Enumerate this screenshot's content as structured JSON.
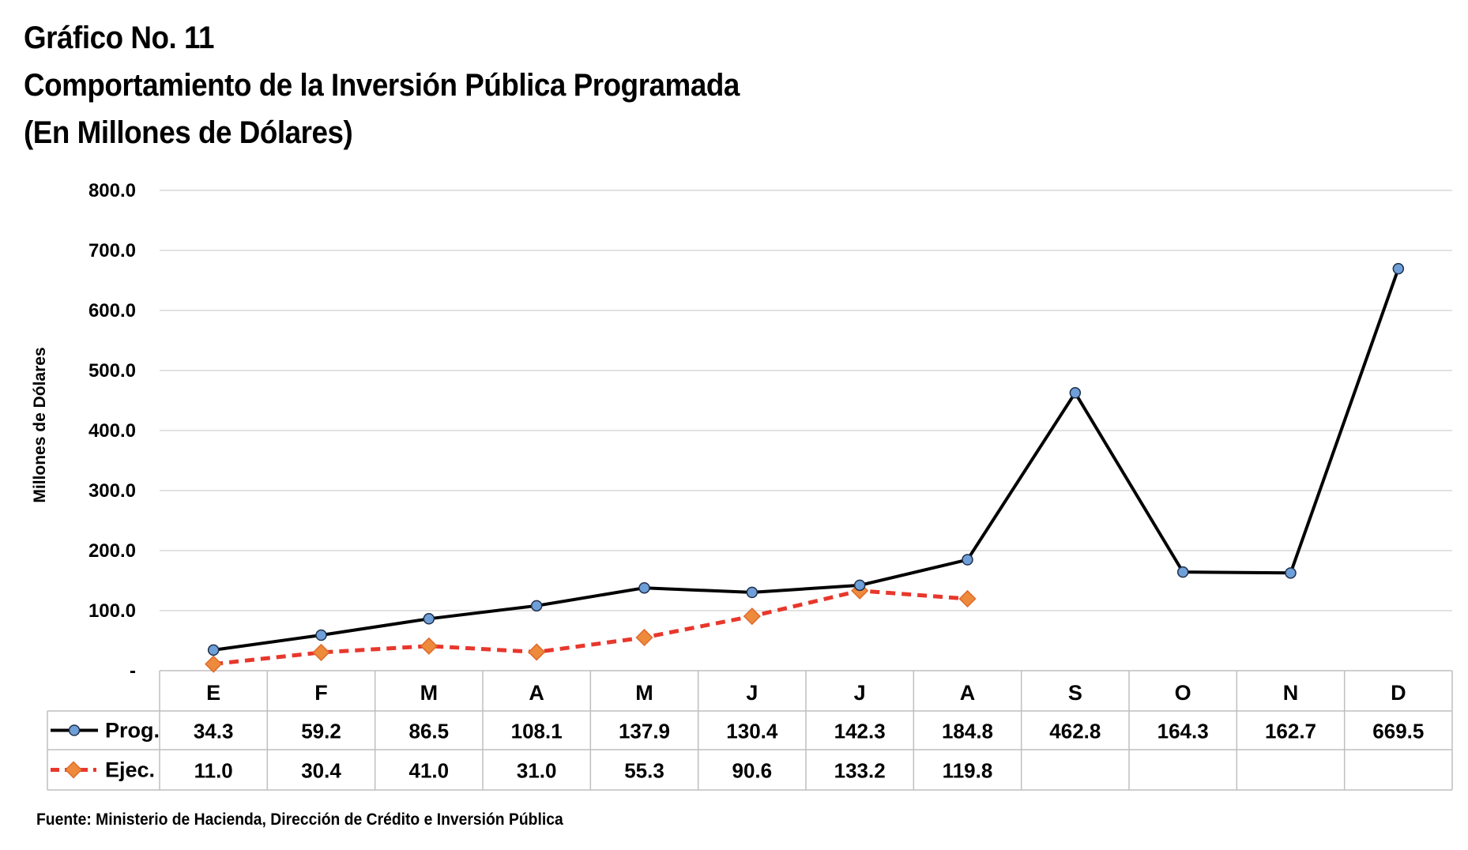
{
  "header": {
    "title_line1": "Gráfico No. 11",
    "title_line2": "Comportamiento de la Inversión Pública Programada",
    "title_line3": "(En Millones de Dólares)"
  },
  "source": "Fuente: Ministerio de Hacienda, Dirección de Crédito e Inversión Pública",
  "chart_data": {
    "type": "line",
    "title": "Comportamiento de la Inversión Pública Programada",
    "ylabel": "Millones de Dólares",
    "xlabel": "",
    "categories": [
      "E",
      "F",
      "M",
      "A",
      "M",
      "J",
      "J",
      "A",
      "S",
      "O",
      "N",
      "D"
    ],
    "ylim": [
      0,
      800
    ],
    "yticks": [
      0,
      100,
      200,
      300,
      400,
      500,
      600,
      700,
      800
    ],
    "ytick_labels": [
      "-",
      "100.0",
      "200.0",
      "300.0",
      "400.0",
      "500.0",
      "600.0",
      "700.0",
      "800.0"
    ],
    "grid": true,
    "legend": "data-table-left",
    "series": [
      {
        "name": "Prog.",
        "color": "#000000",
        "marker_color": "#6f9fd8",
        "style": "solid",
        "marker": "circle",
        "values": [
          34.3,
          59.2,
          86.5,
          108.1,
          137.9,
          130.4,
          142.3,
          184.8,
          462.8,
          164.3,
          162.7,
          669.5
        ],
        "labels": [
          "34.3",
          "59.2",
          "86.5",
          "108.1",
          "137.9",
          "130.4",
          "142.3",
          "184.8",
          "462.8",
          "164.3",
          "162.7",
          "669.5"
        ]
      },
      {
        "name": "Ejec.",
        "color": "#e8372c",
        "marker_color": "#ed8a3c",
        "style": "dashed",
        "marker": "diamond",
        "values": [
          11.0,
          30.4,
          41.0,
          31.0,
          55.3,
          90.6,
          133.2,
          119.8,
          null,
          null,
          null,
          null
        ],
        "labels": [
          "11.0",
          "30.4",
          "41.0",
          "31.0",
          "55.3",
          "90.6",
          "133.2",
          "119.8",
          "",
          "",
          "",
          ""
        ]
      }
    ]
  }
}
